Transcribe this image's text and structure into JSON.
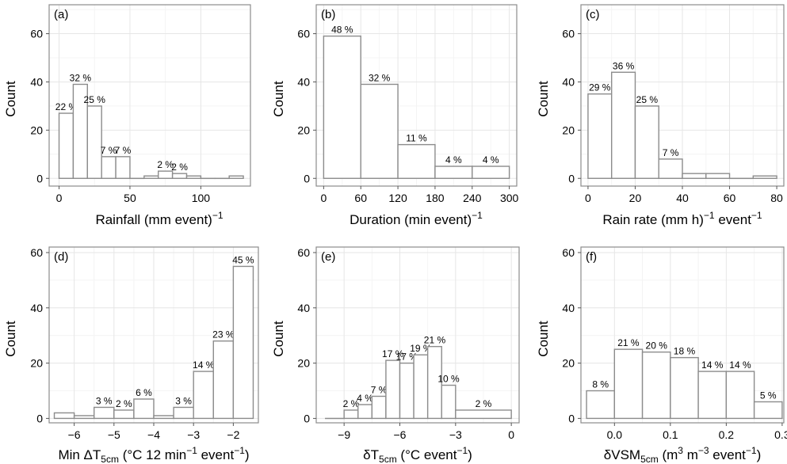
{
  "chart_data": [
    {
      "type": "bar",
      "panel": "(a)",
      "xlabel": {
        "main": "Rainfall (mm event",
        "sup": "−1",
        "after": ")"
      },
      "ylabel": "Count",
      "xlim": [
        -7,
        135
      ],
      "ylim": [
        -3.2,
        72
      ],
      "xticks": [
        0,
        50,
        100
      ],
      "yticks": [
        0,
        20,
        40,
        60
      ],
      "grid": true,
      "bins": [
        {
          "x0": 0,
          "x1": 10,
          "count": 27,
          "label": "22 %"
        },
        {
          "x0": 10,
          "x1": 20,
          "count": 39,
          "label": "32 %"
        },
        {
          "x0": 20,
          "x1": 30,
          "count": 30,
          "label": "25 %"
        },
        {
          "x0": 30,
          "x1": 40,
          "count": 9,
          "label": "7 %"
        },
        {
          "x0": 40,
          "x1": 50,
          "count": 9,
          "label": "7 %"
        },
        {
          "x0": 50,
          "x1": 60,
          "count": 0,
          "label": ""
        },
        {
          "x0": 60,
          "x1": 70,
          "count": 1,
          "label": ""
        },
        {
          "x0": 70,
          "x1": 80,
          "count": 3,
          "label": "2 %"
        },
        {
          "x0": 80,
          "x1": 90,
          "count": 2,
          "label": "2 %"
        },
        {
          "x0": 90,
          "x1": 100,
          "count": 1,
          "label": ""
        },
        {
          "x0": 100,
          "x1": 110,
          "count": 0,
          "label": ""
        },
        {
          "x0": 110,
          "x1": 120,
          "count": 0,
          "label": ""
        },
        {
          "x0": 120,
          "x1": 130,
          "count": 1,
          "label": ""
        }
      ]
    },
    {
      "type": "bar",
      "panel": "(b)",
      "xlabel": {
        "main": "Duration (min event",
        "sup": "−1",
        "after": ")"
      },
      "ylabel": "Count",
      "xlim": [
        -12,
        312
      ],
      "ylim": [
        -3.2,
        72
      ],
      "xticks": [
        0,
        60,
        120,
        180,
        240,
        300
      ],
      "yticks": [
        0,
        20,
        40,
        60
      ],
      "grid": true,
      "bins": [
        {
          "x0": 0,
          "x1": 60,
          "count": 59,
          "label": "48 %"
        },
        {
          "x0": 60,
          "x1": 120,
          "count": 39,
          "label": "32 %"
        },
        {
          "x0": 120,
          "x1": 180,
          "count": 14,
          "label": "11 %"
        },
        {
          "x0": 180,
          "x1": 240,
          "count": 5,
          "label": "4 %"
        },
        {
          "x0": 240,
          "x1": 300,
          "count": 5,
          "label": "4 %"
        }
      ]
    },
    {
      "type": "bar",
      "panel": "(c)",
      "xlabel": {
        "main": "Rain rate (mm h",
        "sup": "−1",
        "mid": " event",
        "sup2": "−1",
        "after": ")"
      },
      "ylabel": "Count",
      "xlim": [
        -3,
        83
      ],
      "ylim": [
        -3.2,
        72
      ],
      "xticks": [
        0,
        20,
        40,
        60,
        80
      ],
      "yticks": [
        0,
        20,
        40,
        60
      ],
      "grid": true,
      "bins": [
        {
          "x0": 0,
          "x1": 10,
          "count": 35,
          "label": "29 %"
        },
        {
          "x0": 10,
          "x1": 20,
          "count": 44,
          "label": "36 %"
        },
        {
          "x0": 20,
          "x1": 30,
          "count": 30,
          "label": "25 %"
        },
        {
          "x0": 30,
          "x1": 40,
          "count": 8,
          "label": "7 %"
        },
        {
          "x0": 40,
          "x1": 50,
          "count": 2,
          "label": ""
        },
        {
          "x0": 50,
          "x1": 60,
          "count": 2,
          "label": ""
        },
        {
          "x0": 60,
          "x1": 70,
          "count": 0,
          "label": ""
        },
        {
          "x0": 70,
          "x1": 80,
          "count": 1,
          "label": ""
        }
      ]
    },
    {
      "type": "bar",
      "panel": "(d)",
      "xlabel": {
        "main": "Min ΔT",
        "sub": "5cm",
        "after": " (°C 12 min",
        "sup": "−1",
        "after2": " event",
        "sup2": "−1",
        "after3": ")"
      },
      "ylabel": "Count",
      "xlim": [
        -6.63,
        -1.37
      ],
      "ylim": [
        -1.6,
        62
      ],
      "xticks": [
        -6,
        -5,
        -4,
        -3,
        -2
      ],
      "yticks": [
        0,
        20,
        40,
        60
      ],
      "grid": true,
      "bins": [
        {
          "x0": -6.5,
          "x1": -6.0,
          "count": 2,
          "label": ""
        },
        {
          "x0": -6.0,
          "x1": -5.5,
          "count": 1,
          "label": ""
        },
        {
          "x0": -5.5,
          "x1": -5.0,
          "count": 4,
          "label": "3 %"
        },
        {
          "x0": -5.0,
          "x1": -4.5,
          "count": 3,
          "label": "2 %"
        },
        {
          "x0": -4.5,
          "x1": -4.0,
          "count": 7,
          "label": "6 %"
        },
        {
          "x0": -4.0,
          "x1": -3.5,
          "count": 1,
          "label": ""
        },
        {
          "x0": -3.5,
          "x1": -3.0,
          "count": 4,
          "label": "3 %"
        },
        {
          "x0": -3.0,
          "x1": -2.5,
          "count": 17,
          "label": "14 %"
        },
        {
          "x0": -2.5,
          "x1": -2.0,
          "count": 28,
          "label": "23 %"
        },
        {
          "x0": -2.0,
          "x1": -1.5,
          "count": 55,
          "label": "45 %"
        }
      ]
    },
    {
      "type": "bar",
      "panel": "(e)",
      "xlabel": {
        "main": "δT",
        "sub": "5cm",
        "after": " (°C event",
        "sup": "−1",
        "after2": ")"
      },
      "ylabel": "Count",
      "xlim": [
        -10.5,
        0.42
      ],
      "ylim": [
        -1.6,
        62
      ],
      "xticks": [
        -9,
        -6,
        -3,
        0
      ],
      "xtick_labels": [
        "-9",
        "-6",
        "-3",
        "0"
      ],
      "yticks": [
        0,
        20,
        40,
        60
      ],
      "grid": true,
      "bins": [
        {
          "x0": -10,
          "x1": -9.0,
          "count": 0,
          "label": ""
        },
        {
          "x0": -9.0,
          "x1": -8.25,
          "count": 3,
          "label": "2 %"
        },
        {
          "x0": -8.25,
          "x1": -7.5,
          "count": 5,
          "label": "4 %"
        },
        {
          "x0": -7.5,
          "x1": -6.75,
          "count": 8,
          "label": "7 %"
        },
        {
          "x0": -6.75,
          "x1": -6.0,
          "count": 21,
          "label": "17 %"
        },
        {
          "x0": -6.0,
          "x1": -5.25,
          "count": 20,
          "label": "17 %"
        },
        {
          "x0": -5.25,
          "x1": -4.5,
          "count": 23,
          "label": "19 %"
        },
        {
          "x0": -4.5,
          "x1": -3.75,
          "count": 26,
          "label": "21 %"
        },
        {
          "x0": -3.75,
          "x1": -3.0,
          "count": 12,
          "label": "10 %"
        },
        {
          "x0": -3.0,
          "x1": 0.0,
          "count": 3,
          "label": "2 %"
        }
      ]
    },
    {
      "type": "bar",
      "panel": "(f)",
      "xlabel": {
        "main": "δVSM",
        "sub": "5cm",
        "after": "  (m",
        "sup": "3",
        "after2": " m",
        "sup2": "−3",
        "after3": " event",
        "sup3": "−1",
        "after4": ")"
      },
      "ylabel": "Count",
      "xlim": [
        -0.06,
        0.303
      ],
      "ylim": [
        -1.6,
        62
      ],
      "xticks": [
        0.0,
        0.1,
        0.2,
        0.3
      ],
      "xtick_labels": [
        "0.0",
        "0.1",
        "0.2",
        "0.3"
      ],
      "yticks": [
        0,
        20,
        40,
        60
      ],
      "grid": true,
      "bins": [
        {
          "x0": -0.05,
          "x1": 0.0,
          "count": 10,
          "label": "8 %"
        },
        {
          "x0": 0.0,
          "x1": 0.05,
          "count": 25,
          "label": "21 %"
        },
        {
          "x0": 0.05,
          "x1": 0.1,
          "count": 24,
          "label": "20 %"
        },
        {
          "x0": 0.1,
          "x1": 0.15,
          "count": 22,
          "label": "18 %"
        },
        {
          "x0": 0.15,
          "x1": 0.2,
          "count": 17,
          "label": "14 %"
        },
        {
          "x0": 0.2,
          "x1": 0.25,
          "count": 17,
          "label": "14 %"
        },
        {
          "x0": 0.25,
          "x1": 0.3,
          "count": 6,
          "label": "5 %"
        }
      ]
    }
  ]
}
